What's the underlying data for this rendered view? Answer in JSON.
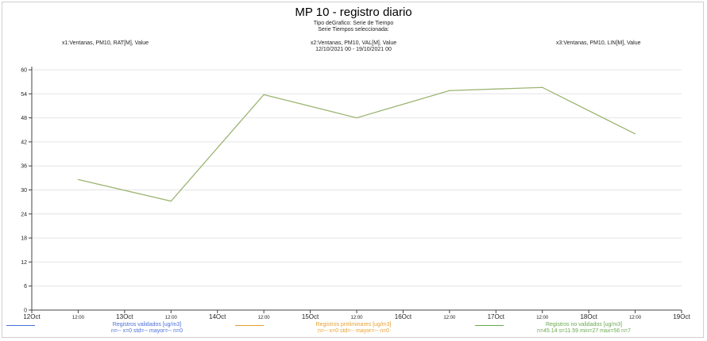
{
  "chart_data": {
    "type": "line",
    "title": "MP 10 - registro diario",
    "subtitle_lines": [
      "Tipo deGrafico: Serie de Tiempo",
      "Serie Tiempos seleccionada:",
      "x2:Ventanas, PM10, VAL[M], Value",
      "12/10/2021 00 - 19/10/2021 00"
    ],
    "series_headers": [
      "x1:Ventanas, PM10, RAT[M], Value",
      "x3:Ventanas, PM10, LIN[M], Value"
    ],
    "x_tick_labels": [
      "12Oct",
      "12:00",
      "13Oct",
      "12:00",
      "14Oct",
      "12:00",
      "15Oct",
      "12:00",
      "16Oct",
      "12:00",
      "17Oct",
      "12:00",
      "18Oct",
      "12:00",
      "19Oct"
    ],
    "y_ticks": [
      0,
      6,
      12,
      18,
      24,
      30,
      36,
      42,
      48,
      54,
      60
    ],
    "ylim": [
      0,
      60
    ],
    "grid": true,
    "series": [
      {
        "color": "#9bb572",
        "x": [
          "12Oct 12:00",
          "13Oct 12:00",
          "14Oct 12:00",
          "15Oct 12:00",
          "16Oct 12:00",
          "17Oct 12:00",
          "18Oct 12:00"
        ],
        "values": [
          32.6,
          27.2,
          53.8,
          48.0,
          54.8,
          55.6,
          44.0
        ]
      }
    ],
    "legend": {
      "placement": "bottom",
      "entries": [
        {
          "label": "Registros validados [ug/m3]",
          "stats": "n=-- x=0 std=-- mayor=-- n=0",
          "color": "#4a6fd8"
        },
        {
          "label": "Registros preliminares [ug/m3]",
          "stats": "n=-- x=0 std=-- mayor=-- n=0",
          "color": "#e8a030"
        },
        {
          "label": "Registros no validados [ug/m3]",
          "stats": "n=45.14 s=11.59 min=27 max=56 n=7",
          "color": "#6aa84f"
        }
      ]
    }
  }
}
